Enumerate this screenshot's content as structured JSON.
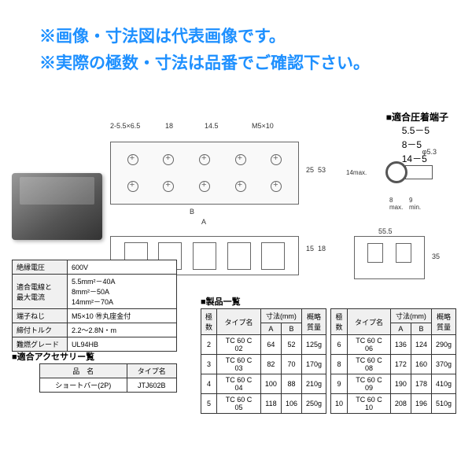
{
  "notice": {
    "line1": "※画像・寸法図は代表画像です。",
    "line2": "※実際の極数・寸法は品番でご確認下さい。"
  },
  "terminals": {
    "heading": "■適合圧着端子",
    "items": [
      "5.5－5",
      "8－5",
      "14－5"
    ]
  },
  "diagram_labels": {
    "top1": "2-5.5×6.5",
    "top2": "18",
    "top3": "14.5",
    "top4": "M5×10",
    "right1": "φ5.3",
    "right2": "14max.",
    "right3": "8\nmax.",
    "right4": "9\nmin.",
    "side_h": "25",
    "side_h2": "53",
    "bottom_a": "A",
    "bottom_b": "B",
    "end_w": "55.5",
    "end_h1": "15",
    "end_h2": "18",
    "end_h3": "35"
  },
  "specs": {
    "rows": [
      [
        "絶縁電圧",
        "600V"
      ],
      [
        "適合電線と\n最大電流",
        "5.5mm²－40A\n8mm²－50A\n14mm²－70A"
      ],
      [
        "端子ねじ",
        "M5×10 ㊕丸座金付"
      ],
      [
        "締付トルク",
        "2.2～2.8N・m"
      ],
      [
        "難燃グレード",
        "UL94HB"
      ]
    ]
  },
  "accessory": {
    "heading": "■適合アクセサリー覧",
    "cols": [
      "品　名",
      "タイプ名"
    ],
    "rows": [
      [
        "ショートバー(2P)",
        "JTJ602B"
      ]
    ]
  },
  "products": {
    "heading": "■製品一覧",
    "cols_group": [
      "極\n数",
      "タイプ名",
      "寸法(mm)",
      "概略\n質量"
    ],
    "sub_cols": [
      "A",
      "B"
    ],
    "table1": [
      [
        "2",
        "TC 60 C 02",
        "64",
        "52",
        "125g"
      ],
      [
        "3",
        "TC 60 C 03",
        "82",
        "70",
        "170g"
      ],
      [
        "4",
        "TC 60 C 04",
        "100",
        "88",
        "210g"
      ],
      [
        "5",
        "TC 60 C 05",
        "118",
        "106",
        "250g"
      ]
    ],
    "table2": [
      [
        "6",
        "TC 60 C 06",
        "136",
        "124",
        "290g"
      ],
      [
        "8",
        "TC 60 C 08",
        "172",
        "160",
        "370g"
      ],
      [
        "9",
        "TC 60 C 09",
        "190",
        "178",
        "410g"
      ],
      [
        "10",
        "TC 60 C 10",
        "208",
        "196",
        "510g"
      ]
    ]
  },
  "colors": {
    "notice_text": "#1e90ff",
    "border": "#333333",
    "header_bg": "#f0f0f0"
  }
}
